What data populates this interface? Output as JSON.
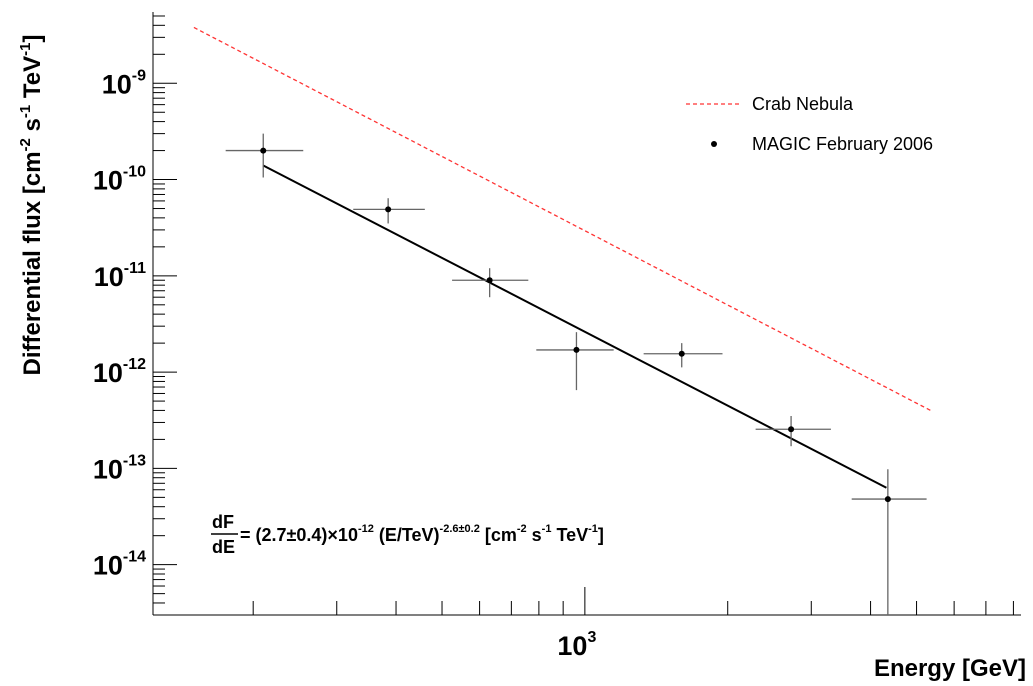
{
  "chart_data": {
    "type": "scatter",
    "xlabel": "Energy [GeV]",
    "ylabel": "Differential flux [cm^-2 s^-1 TeV^-1]",
    "xscale": "log",
    "yscale": "log",
    "xlim": [
      123,
      8300
    ],
    "ylim": [
      3e-15,
      5.5e-09
    ],
    "x_ticks": [
      {
        "value": 1000,
        "base": "10",
        "exp": "3"
      }
    ],
    "y_ticks": [
      {
        "value": 1e-09,
        "base": "10",
        "exp": "-9"
      },
      {
        "value": 1e-10,
        "base": "10",
        "exp": "-10"
      },
      {
        "value": 1e-11,
        "base": "10",
        "exp": "-11"
      },
      {
        "value": 1e-12,
        "base": "10",
        "exp": "-12"
      },
      {
        "value": 1e-13,
        "base": "10",
        "exp": "-13"
      },
      {
        "value": 1e-14,
        "base": "10",
        "exp": "-14"
      }
    ],
    "legend": {
      "position": "top-right",
      "entries": [
        {
          "label": "Crab Nebula",
          "style": "dashed-line",
          "color": "#ff3333"
        },
        {
          "label": "MAGIC February 2006",
          "style": "marker",
          "color": "#000000"
        }
      ]
    },
    "series": [
      {
        "name": "MAGIC February 2006",
        "points": [
          {
            "x": 210,
            "y": 2e-10,
            "xerr": [
              175,
              255
            ],
            "yerr": [
              1.05e-10,
              3e-10
            ]
          },
          {
            "x": 385,
            "y": 4.9e-11,
            "xerr": [
              325,
              460
            ],
            "yerr": [
              3.5e-11,
              6.4e-11
            ]
          },
          {
            "x": 630,
            "y": 9e-12,
            "xerr": [
              525,
              760
            ],
            "yerr": [
              6e-12,
              1.2e-11
            ]
          },
          {
            "x": 960,
            "y": 1.7e-12,
            "xerr": [
              790,
              1150
            ],
            "yerr": [
              6.5e-13,
              2.6e-12
            ]
          },
          {
            "x": 1600,
            "y": 1.55e-12,
            "xerr": [
              1330,
              1950
            ],
            "yerr": [
              1.12e-12,
              2e-12
            ]
          },
          {
            "x": 2720,
            "y": 2.55e-13,
            "xerr": [
              2290,
              3300
            ],
            "yerr": [
              1.7e-13,
              3.5e-13
            ]
          },
          {
            "x": 4350,
            "y": 4.8e-14,
            "xerr": [
              3650,
              5250
            ],
            "yerr": [
              3e-15,
              9.8e-14
            ]
          }
        ]
      },
      {
        "role": "fit",
        "x": [
          210,
          4320
        ],
        "y": [
          1.4e-10,
          6.3e-14
        ]
      },
      {
        "name": "Crab Nebula",
        "x": [
          150,
          5350
        ],
        "y": [
          3.8e-09,
          4e-13
        ]
      }
    ],
    "annotation": {
      "numerator": "dF",
      "denominator": "dE",
      "parts": [
        {
          "text": " = (2.7±0.4)×10",
          "sup": false
        },
        {
          "text": "-12",
          "sup": true
        },
        {
          "text": " (E/TeV)",
          "sup": false
        },
        {
          "text": "-2.6±0.2",
          "sup": true
        },
        {
          "text": " [cm",
          "sup": false
        },
        {
          "text": "-2",
          "sup": true
        },
        {
          "text": " s",
          "sup": false
        },
        {
          "text": "-1",
          "sup": true
        },
        {
          "text": " TeV",
          "sup": false
        },
        {
          "text": "-1",
          "sup": true
        },
        {
          "text": "]",
          "sup": false
        }
      ]
    }
  }
}
